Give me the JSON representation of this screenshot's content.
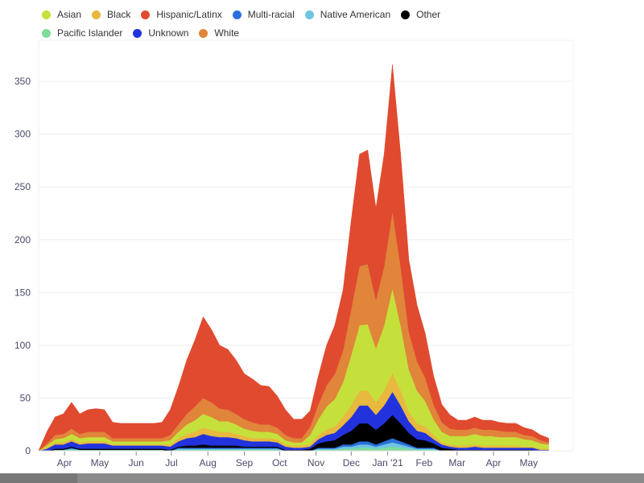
{
  "chart_data": {
    "type": "area",
    "stacked": true,
    "title": "",
    "xlabel": "",
    "ylabel": "",
    "ylim": [
      0,
      389
    ],
    "yticks": [
      0,
      50,
      100,
      150,
      200,
      250,
      300,
      350
    ],
    "xtick_labels": [
      {
        "date": "2020-04-01",
        "label": "Apr"
      },
      {
        "date": "2020-05-01",
        "label": "May"
      },
      {
        "date": "2020-06-01",
        "label": "Jun"
      },
      {
        "date": "2020-07-01",
        "label": "Jul"
      },
      {
        "date": "2020-08-01",
        "label": "Aug"
      },
      {
        "date": "2020-09-01",
        "label": "Sep"
      },
      {
        "date": "2020-10-01",
        "label": "Oct"
      },
      {
        "date": "2020-11-01",
        "label": "Nov"
      },
      {
        "date": "2020-12-01",
        "label": "Dec"
      },
      {
        "date": "2021-01-01",
        "label": "Jan '21"
      },
      {
        "date": "2021-02-01",
        "label": "Feb"
      },
      {
        "date": "2021-03-01",
        "label": "Mar"
      },
      {
        "date": "2021-04-01",
        "label": "Apr"
      },
      {
        "date": "2021-05-01",
        "label": "May"
      }
    ],
    "grid": true,
    "legend_position": "top",
    "x": [
      "2020-03-10",
      "2020-03-17",
      "2020-03-24",
      "2020-03-31",
      "2020-04-07",
      "2020-04-14",
      "2020-04-21",
      "2020-04-28",
      "2020-05-05",
      "2020-05-12",
      "2020-05-19",
      "2020-05-26",
      "2020-06-02",
      "2020-06-09",
      "2020-06-16",
      "2020-06-23",
      "2020-06-30",
      "2020-07-07",
      "2020-07-14",
      "2020-07-21",
      "2020-07-28",
      "2020-08-04",
      "2020-08-11",
      "2020-08-18",
      "2020-08-25",
      "2020-09-01",
      "2020-09-08",
      "2020-09-15",
      "2020-09-22",
      "2020-09-29",
      "2020-10-06",
      "2020-10-13",
      "2020-10-20",
      "2020-10-27",
      "2020-11-03",
      "2020-11-10",
      "2020-11-17",
      "2020-11-24",
      "2020-12-01",
      "2020-12-08",
      "2020-12-15",
      "2020-12-22",
      "2020-12-29",
      "2021-01-05",
      "2021-01-12",
      "2021-01-19",
      "2021-01-26",
      "2021-02-02",
      "2021-02-09",
      "2021-02-16",
      "2021-02-23",
      "2021-03-02",
      "2021-03-09",
      "2021-03-16",
      "2021-03-23",
      "2021-03-30",
      "2021-04-06",
      "2021-04-13",
      "2021-04-20",
      "2021-04-27",
      "2021-05-04",
      "2021-05-11",
      "2021-05-18"
    ],
    "series": [
      {
        "name": "Pacific Islander",
        "color": "#7ddc9a",
        "values": [
          0,
          0,
          1,
          1,
          1,
          1,
          1,
          1,
          1,
          1,
          1,
          1,
          1,
          1,
          1,
          1,
          0,
          1,
          1,
          1,
          1,
          1,
          1,
          1,
          1,
          1,
          1,
          1,
          1,
          1,
          0,
          0,
          0,
          0,
          1,
          1,
          1,
          2,
          2,
          3,
          3,
          2,
          3,
          4,
          3,
          2,
          1,
          1,
          1,
          0,
          0,
          0,
          0,
          0,
          0,
          0,
          0,
          0,
          0,
          0,
          0,
          0,
          0
        ]
      },
      {
        "name": "Native American",
        "color": "#6ec6e0",
        "values": [
          0,
          0,
          0,
          0,
          1,
          0,
          0,
          0,
          0,
          0,
          0,
          0,
          0,
          0,
          0,
          0,
          0,
          1,
          1,
          1,
          1,
          1,
          1,
          1,
          1,
          1,
          1,
          1,
          1,
          1,
          0,
          0,
          0,
          0,
          1,
          1,
          1,
          2,
          2,
          3,
          3,
          2,
          3,
          4,
          3,
          2,
          1,
          1,
          1,
          0,
          0,
          0,
          0,
          0,
          0,
          0,
          0,
          0,
          0,
          0,
          0,
          0,
          0
        ]
      },
      {
        "name": "Multi-racial",
        "color": "#2a6fdb",
        "values": [
          0,
          0,
          0,
          0,
          1,
          0,
          0,
          0,
          0,
          0,
          0,
          0,
          0,
          0,
          0,
          0,
          0,
          1,
          1,
          1,
          1,
          1,
          1,
          1,
          1,
          1,
          1,
          1,
          1,
          1,
          0,
          0,
          0,
          0,
          1,
          1,
          1,
          2,
          2,
          3,
          3,
          2,
          3,
          4,
          3,
          2,
          1,
          1,
          1,
          0,
          0,
          0,
          0,
          0,
          0,
          0,
          0,
          0,
          0,
          0,
          0,
          0,
          0
        ]
      },
      {
        "name": "Other",
        "color": "#000000",
        "values": [
          0,
          0,
          1,
          1,
          1,
          1,
          1,
          1,
          1,
          1,
          1,
          1,
          1,
          1,
          1,
          1,
          1,
          1,
          2,
          2,
          3,
          2,
          2,
          2,
          2,
          1,
          1,
          1,
          1,
          1,
          1,
          1,
          1,
          2,
          4,
          6,
          7,
          9,
          13,
          17,
          17,
          14,
          17,
          22,
          17,
          11,
          8,
          7,
          4,
          3,
          2,
          1,
          1,
          1,
          1,
          1,
          1,
          1,
          1,
          1,
          1,
          0,
          0
        ]
      },
      {
        "name": "Unknown",
        "color": "#2233dd",
        "values": [
          0,
          2,
          4,
          4,
          5,
          4,
          5,
          5,
          5,
          3,
          3,
          3,
          3,
          3,
          3,
          3,
          3,
          5,
          7,
          8,
          10,
          9,
          8,
          8,
          7,
          6,
          5,
          5,
          5,
          4,
          3,
          2,
          2,
          2,
          4,
          6,
          7,
          9,
          13,
          17,
          17,
          14,
          17,
          22,
          17,
          11,
          8,
          7,
          4,
          3,
          2,
          2,
          2,
          3,
          2,
          2,
          2,
          2,
          2,
          2,
          2,
          1,
          1
        ]
      },
      {
        "name": "Black",
        "color": "#e8b83f",
        "values": [
          0,
          1,
          2,
          2,
          2,
          2,
          2,
          2,
          2,
          1,
          1,
          1,
          1,
          1,
          1,
          1,
          2,
          3,
          4,
          5,
          6,
          6,
          5,
          5,
          4,
          4,
          3,
          3,
          3,
          3,
          2,
          2,
          2,
          2,
          4,
          5,
          6,
          8,
          11,
          14,
          14,
          12,
          14,
          18,
          14,
          9,
          7,
          6,
          4,
          2,
          2,
          2,
          2,
          2,
          2,
          2,
          2,
          2,
          2,
          1,
          1,
          1,
          1
        ]
      },
      {
        "name": "Asian",
        "color": "#c5e03a",
        "values": [
          0,
          2,
          3,
          4,
          5,
          4,
          4,
          4,
          4,
          3,
          3,
          3,
          3,
          3,
          3,
          3,
          4,
          6,
          9,
          11,
          13,
          12,
          10,
          10,
          9,
          7,
          7,
          6,
          6,
          5,
          4,
          3,
          3,
          9,
          15,
          22,
          26,
          33,
          48,
          62,
          63,
          51,
          62,
          80,
          62,
          40,
          31,
          24,
          15,
          10,
          8,
          9,
          9,
          10,
          9,
          9,
          8,
          8,
          8,
          7,
          6,
          5,
          4
        ]
      },
      {
        "name": "White",
        "color": "#e0853a",
        "values": [
          0,
          2,
          4,
          4,
          5,
          4,
          5,
          5,
          5,
          3,
          3,
          3,
          3,
          3,
          3,
          3,
          5,
          7,
          10,
          13,
          15,
          14,
          12,
          11,
          10,
          9,
          8,
          7,
          7,
          6,
          5,
          4,
          4,
          8,
          14,
          20,
          24,
          30,
          44,
          56,
          57,
          46,
          56,
          73,
          56,
          36,
          28,
          22,
          14,
          9,
          7,
          6,
          6,
          6,
          6,
          6,
          6,
          5,
          5,
          4,
          4,
          3,
          2
        ]
      },
      {
        "name": "Hispanic/Latinx",
        "color": "#e04a2f",
        "values": [
          0,
          11,
          17,
          19,
          25,
          19,
          21,
          22,
          21,
          15,
          14,
          14,
          14,
          14,
          14,
          15,
          24,
          36,
          51,
          63,
          77,
          69,
          60,
          57,
          51,
          43,
          41,
          37,
          36,
          30,
          24,
          18,
          18,
          15,
          27,
          38,
          46,
          57,
          84,
          106,
          108,
          87,
          106,
          139,
          106,
          68,
          53,
          42,
          27,
          17,
          13,
          9,
          9,
          10,
          9,
          9,
          8,
          8,
          8,
          7,
          6,
          5,
          4
        ]
      }
    ]
  },
  "legend": [
    {
      "label": "Asian",
      "color": "#c5e03a"
    },
    {
      "label": "Black",
      "color": "#e8b83f"
    },
    {
      "label": "Hispanic/Latinx",
      "color": "#e04a2f"
    },
    {
      "label": "Multi-racial",
      "color": "#2a6fdb"
    },
    {
      "label": "Native American",
      "color": "#6ec6e0"
    },
    {
      "label": "Other",
      "color": "#000000"
    },
    {
      "label": "Pacific Islander",
      "color": "#7ddc9a"
    },
    {
      "label": "Unknown",
      "color": "#2233dd"
    },
    {
      "label": "White",
      "color": "#e0853a"
    }
  ]
}
